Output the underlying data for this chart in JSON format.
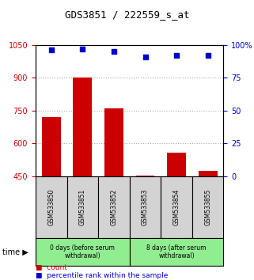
{
  "title": "GDS3851 / 222559_s_at",
  "samples": [
    "GSM533850",
    "GSM533851",
    "GSM533852",
    "GSM533853",
    "GSM533854",
    "GSM533855"
  ],
  "counts": [
    720,
    900,
    760,
    455,
    560,
    475
  ],
  "percentiles": [
    96,
    97,
    95,
    91,
    92,
    92
  ],
  "ylim_left": [
    450,
    1050
  ],
  "ylim_right": [
    0,
    100
  ],
  "yticks_left": [
    450,
    600,
    750,
    900,
    1050
  ],
  "yticks_right": [
    0,
    25,
    50,
    75,
    100
  ],
  "ytick_labels_left": [
    "450",
    "600",
    "750",
    "900",
    "1050"
  ],
  "ytick_labels_right": [
    "0",
    "25",
    "50",
    "75",
    "100%"
  ],
  "groups": [
    {
      "label": "0 days (before serum\nwithdrawal)",
      "samples": [
        0,
        1,
        2
      ],
      "color": "#90ee90"
    },
    {
      "label": "8 days (after serum\nwithdrawal)",
      "samples": [
        3,
        4,
        5
      ],
      "color": "#90ee90"
    }
  ],
  "bar_color": "#cc0000",
  "scatter_color": "#0000cc",
  "bar_width": 0.6,
  "grid_color": "#aaaaaa",
  "legend_count_color": "#cc0000",
  "legend_pct_color": "#0000cc",
  "left_tick_color": "#cc0000",
  "right_tick_color": "#0000cc",
  "sample_box_color": "#d3d3d3"
}
